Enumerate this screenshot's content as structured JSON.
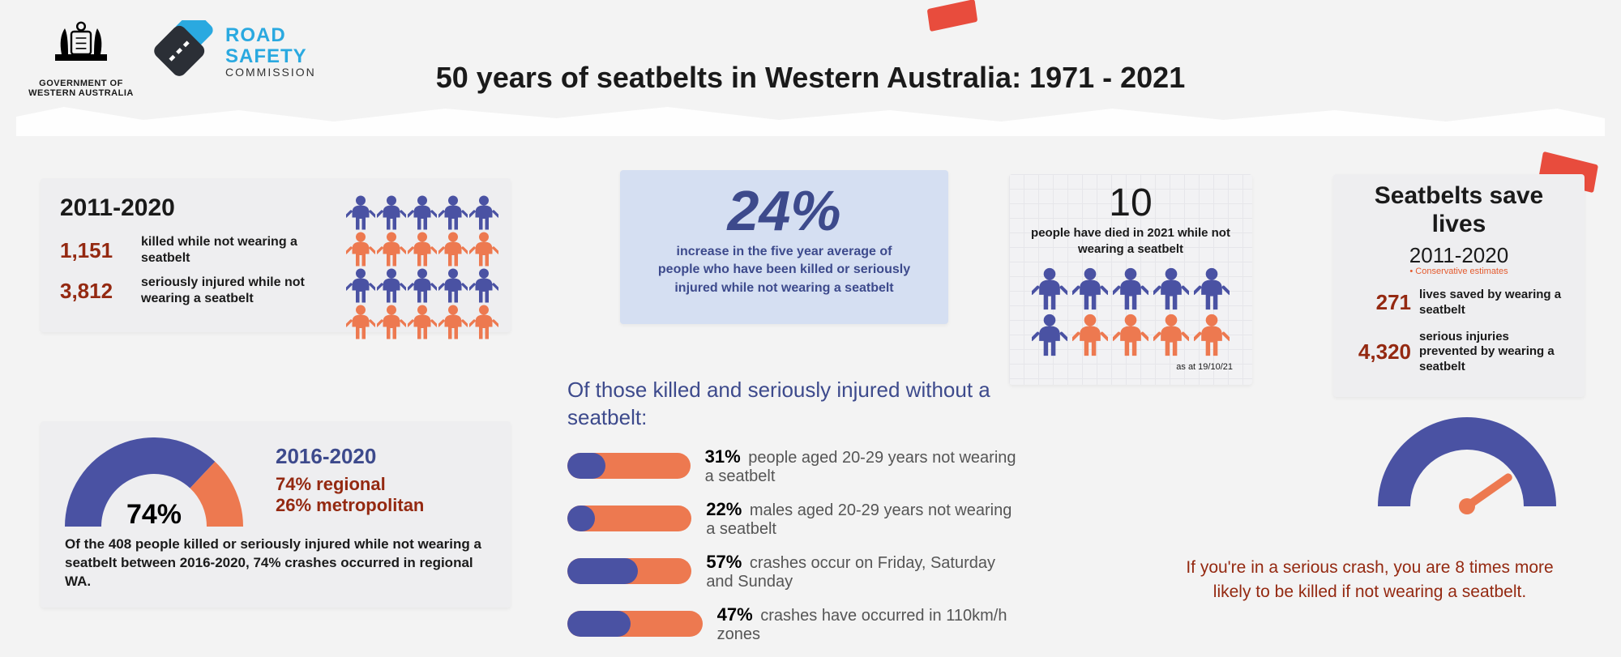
{
  "colors": {
    "purple": "#4a52a3",
    "darkpurple": "#3d4a8c",
    "orange": "#ed7950",
    "darkred": "#942911",
    "teal": "#2aa9e0",
    "red": "#e84c3d",
    "paleblue": "#d5dff2",
    "bg": "#f3f3f3",
    "card": "#eeeef0"
  },
  "header": {
    "gov_label": "GOVERNMENT OF\nWESTERN AUSTRALIA",
    "rsc_line1": "ROAD",
    "rsc_line2": "SAFETY",
    "rsc_line3": "COMMISSION",
    "title": "50 years of seatbelts in Western Australia: 1971 - 2021"
  },
  "c1": {
    "years": "2011-2020",
    "killed_num": "1,151",
    "killed_label": "killed while not wearing a seatbelt",
    "injured_num": "3,812",
    "injured_label": "seriously injured while not wearing a seatbelt",
    "people_grid": {
      "cols": 5,
      "rows": [
        [
          "p",
          "p",
          "p",
          "p",
          "p"
        ],
        [
          "o",
          "o",
          "o",
          "o",
          "o"
        ],
        [
          "p",
          "p",
          "p",
          "p",
          "p"
        ],
        [
          "o",
          "o",
          "o",
          "o",
          "o"
        ]
      ],
      "color_map": {
        "p": "#4a52a3",
        "o": "#ed7950"
      },
      "icon_size": 36
    }
  },
  "c2": {
    "value": "24%",
    "caption": "increase in the five year average of people who have been killed or seriously injured while not wearing a seatbelt"
  },
  "c3": {
    "value": "10",
    "caption": "people have died in 2021 while not wearing a seatbelt",
    "people_grid": {
      "cols": 5,
      "rows": [
        [
          "p",
          "p",
          "p",
          "p",
          "p"
        ],
        [
          "p",
          "o",
          "o",
          "o",
          "o"
        ]
      ],
      "color_map": {
        "p": "#4a52a3",
        "o": "#ed7950"
      },
      "icon_size": 44
    },
    "asat": "as at 19/10/21"
  },
  "c4": {
    "title": "Seatbelts save lives",
    "years": "2011-2020",
    "conservative": "• Conservative estimates",
    "saved_num": "271",
    "saved_label": "lives saved by wearing a seatbelt",
    "prev_num": "4,320",
    "prev_label": "serious injuries prevented by wearing a seatbelt"
  },
  "c5": {
    "gauge": {
      "percent": 74,
      "outer_radius": 110,
      "inner_radius": 65,
      "primary_color": "#4a52a3",
      "secondary_color": "#ed7950",
      "center_label": "74%",
      "center_fontsize": 34
    },
    "years": "2016-2020",
    "regional": "74% regional",
    "metro": "26% metropolitan",
    "caption": "Of the 408  people killed or seriously injured while not wearing a seatbelt between  2016-2020, 74% crashes occurred in regional WA."
  },
  "mid": {
    "heading": "Of those killed and seriously injured without a seatbelt:",
    "items": [
      {
        "pct": 31,
        "text": "people aged 20-29 years not wearing a seatbelt"
      },
      {
        "pct": 22,
        "text": "males aged 20-29 years not wearing a seatbelt"
      },
      {
        "pct": 57,
        "text": "crashes occur on Friday, Saturday and Sunday"
      },
      {
        "pct": 47,
        "text": "crashes have occurred in 110km/h zones"
      }
    ],
    "pill": {
      "width": 185,
      "height": 32,
      "fill_color": "#4a52a3",
      "track_color": "#ed7950"
    }
  },
  "speedo": {
    "outer_radius": 110,
    "inner_radius": 70,
    "arc_color": "#4a52a3",
    "needle_color": "#ed7950",
    "needle_angle_deg": 35
  },
  "crash_text": "If you're in a serious crash, you are 8 times more likely to be killed if not wearing a seatbelt."
}
